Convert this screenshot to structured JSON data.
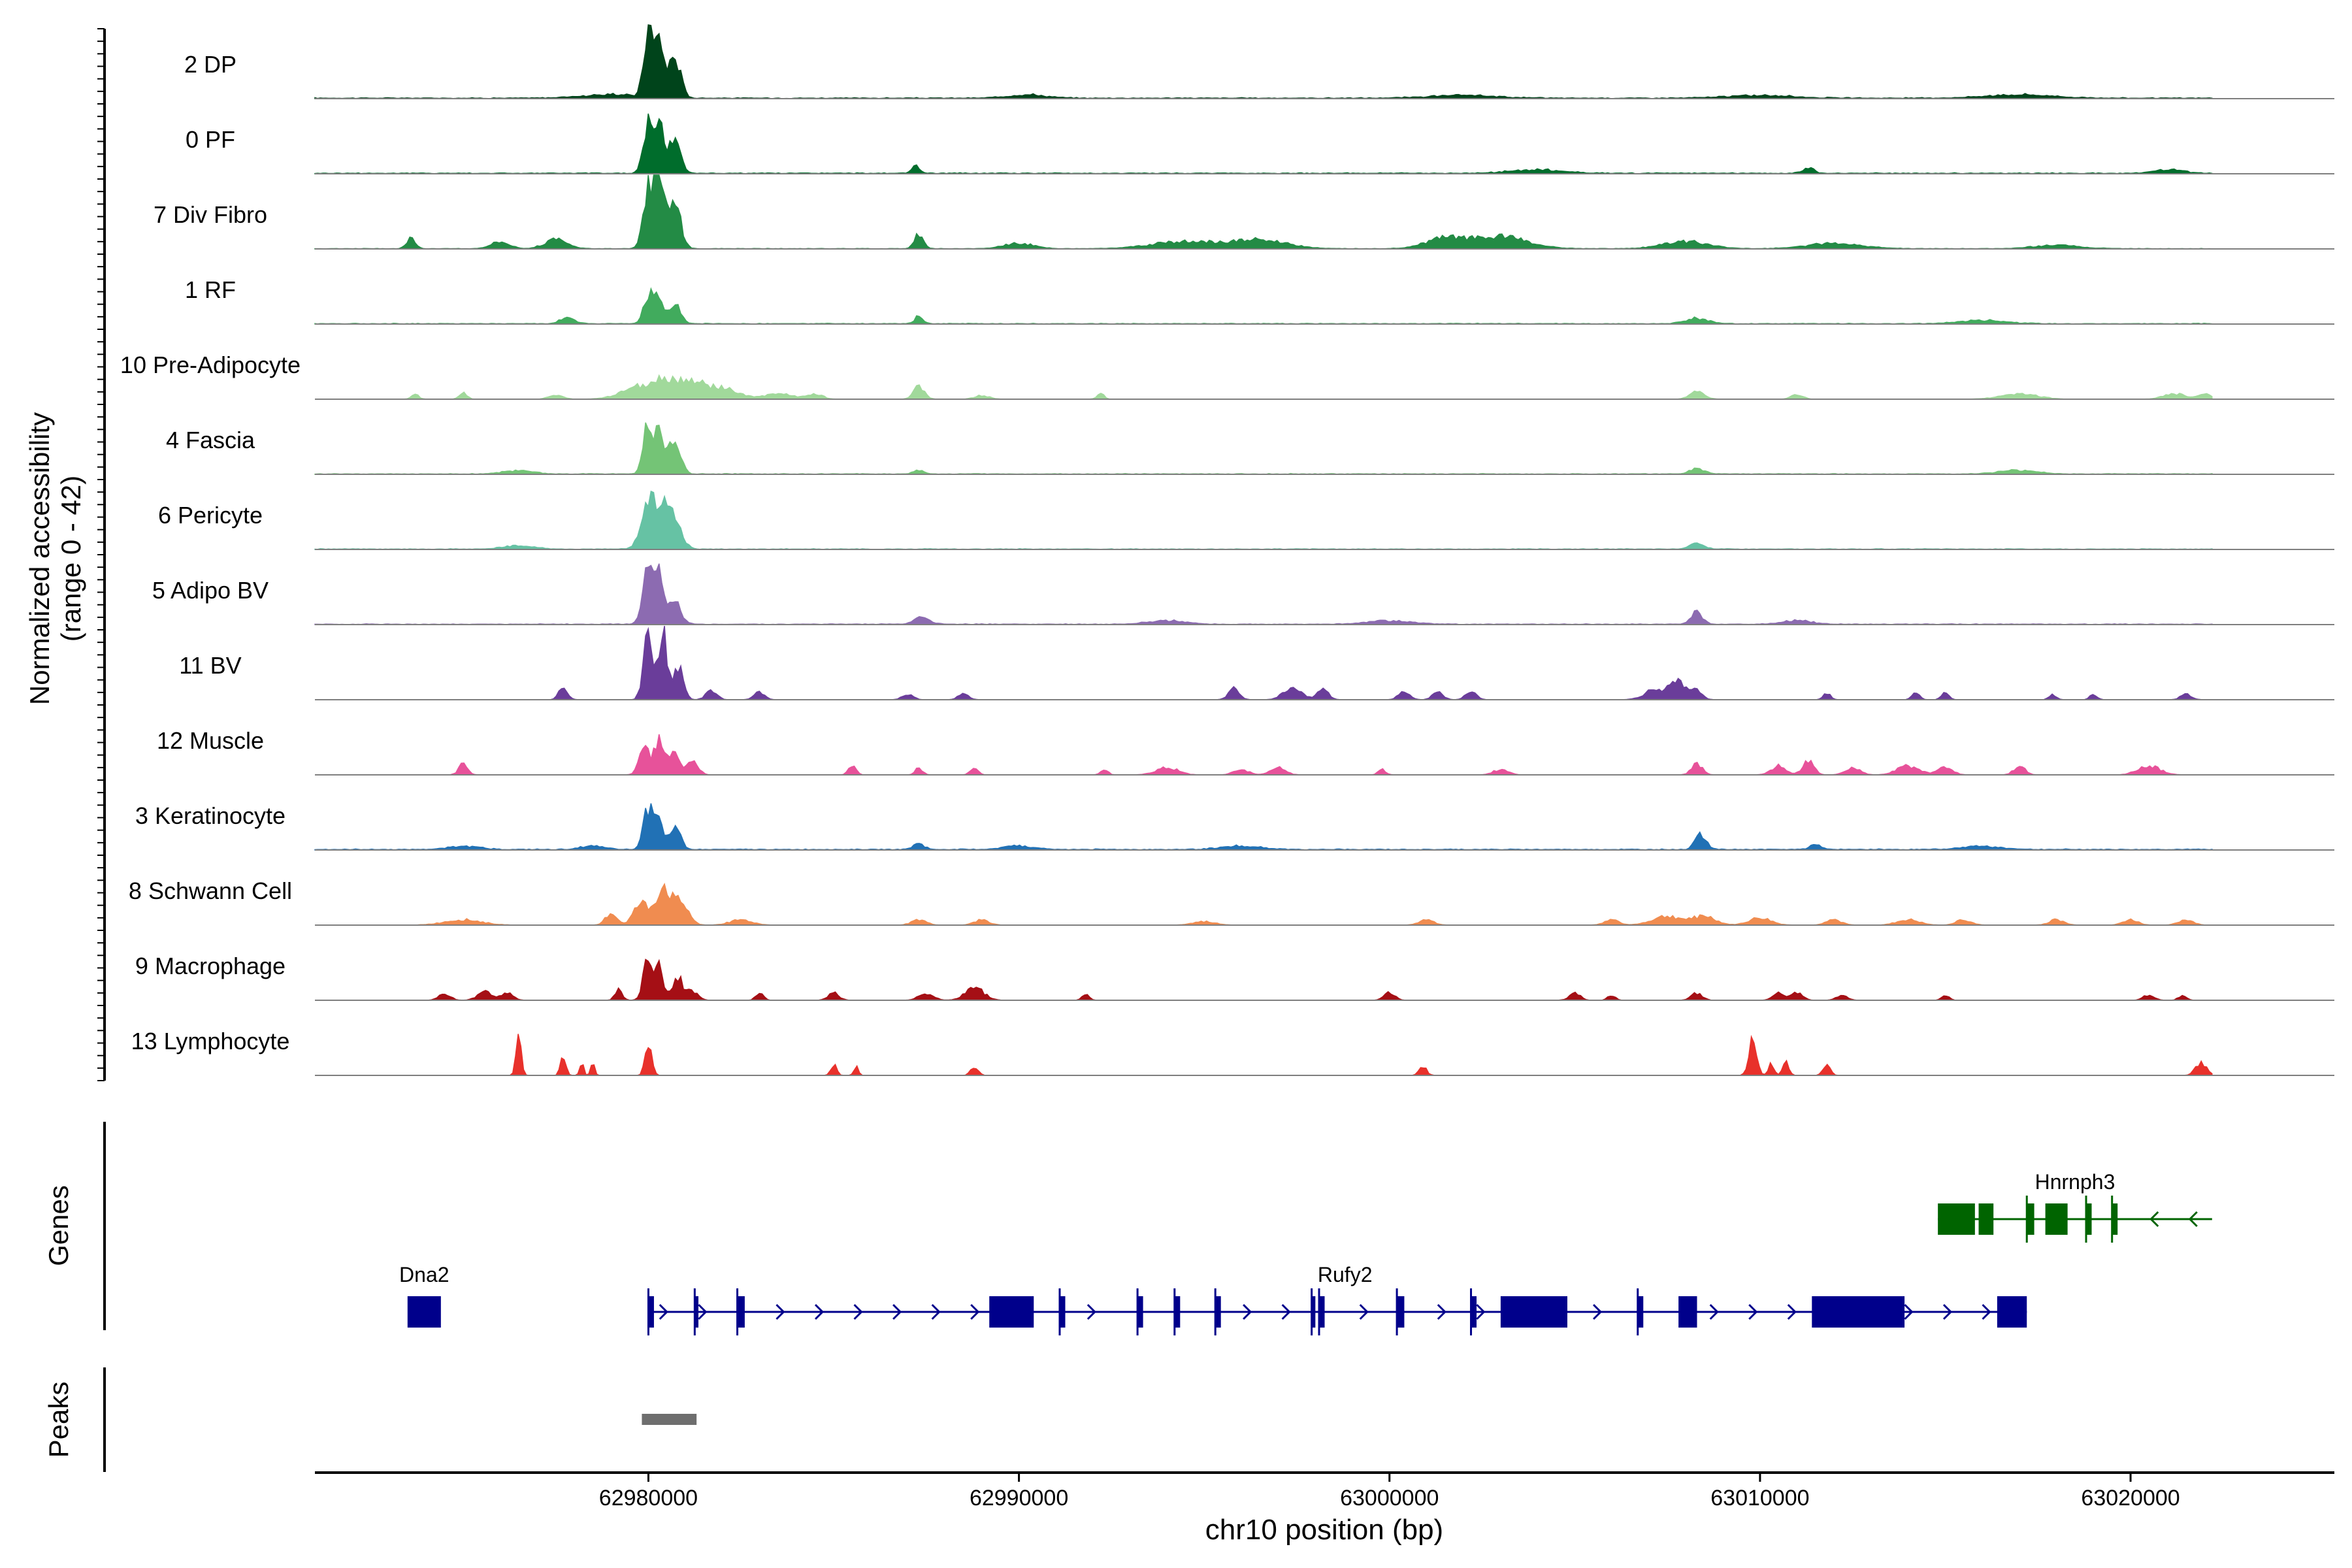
{
  "chart_data": {
    "type": "area",
    "x_axis": {
      "label": "chr10 position (bp)",
      "range": [
        62971000,
        63025500
      ],
      "ticks": [
        {
          "value": 62980000,
          "label": "62980000"
        },
        {
          "value": 62990000,
          "label": "62990000"
        },
        {
          "value": 63000000,
          "label": "63000000"
        },
        {
          "value": 63010000,
          "label": "63010000"
        },
        {
          "value": 63020000,
          "label": "63020000"
        }
      ]
    },
    "y_axis": {
      "label_line1": "Normalized accessibility",
      "label_line2": "(range 0 - 42)",
      "range": [
        0,
        42
      ]
    },
    "track_range": [
      62971000,
      63022200
    ],
    "tracks": [
      {
        "name": "2 DP",
        "color": "#00441b",
        "base": 0.4,
        "peaks": [
          [
            62980000,
            40,
            120
          ],
          [
            62980300,
            32,
            110
          ],
          [
            62980700,
            24,
            160
          ],
          [
            62979000,
            2,
            800
          ],
          [
            62990200,
            2,
            500
          ],
          [
            63002000,
            1.5,
            900
          ],
          [
            63010000,
            1.5,
            900
          ],
          [
            63017000,
            2,
            900
          ]
        ]
      },
      {
        "name": "0 PF",
        "color": "#006d2c",
        "base": 0.4,
        "peaks": [
          [
            62980000,
            30,
            130
          ],
          [
            62980300,
            34,
            110
          ],
          [
            62980700,
            22,
            160
          ],
          [
            62987200,
            4,
            100
          ],
          [
            63004000,
            2,
            700
          ],
          [
            63011300,
            3,
            150
          ],
          [
            63021000,
            2,
            400
          ]
        ]
      },
      {
        "name": "7 Div Fibro",
        "color": "#238b45",
        "base": 0.2,
        "peaks": [
          [
            62973600,
            6,
            120
          ],
          [
            62976000,
            4,
            250
          ],
          [
            62977500,
            5,
            300
          ],
          [
            62980000,
            36,
            140
          ],
          [
            62980300,
            40,
            120
          ],
          [
            62980700,
            26,
            170
          ],
          [
            62987300,
            8,
            120
          ],
          [
            62990000,
            3,
            400
          ],
          [
            62994500,
            4,
            900
          ],
          [
            62996500,
            5,
            700
          ],
          [
            63001500,
            6,
            500
          ],
          [
            63003000,
            7,
            700
          ],
          [
            63008000,
            4,
            600
          ],
          [
            63012000,
            3,
            700
          ],
          [
            63018000,
            2,
            600
          ]
        ]
      },
      {
        "name": "1 RF",
        "color": "#41ab5d",
        "base": 0.3,
        "peaks": [
          [
            62977800,
            3,
            200
          ],
          [
            62980000,
            18,
            130
          ],
          [
            62980300,
            14,
            110
          ],
          [
            62980700,
            11,
            160
          ],
          [
            62987300,
            4,
            120
          ],
          [
            63008300,
            3,
            300
          ],
          [
            63016000,
            2,
            600
          ]
        ]
      },
      {
        "name": "10 Pre-Adipocyte",
        "color": "#a1d99b",
        "base": 0.0,
        "peaks": [
          [
            62973700,
            3,
            100
          ],
          [
            62975000,
            4,
            100
          ],
          [
            62977500,
            2,
            200
          ],
          [
            62979800,
            7,
            500
          ],
          [
            62980600,
            9,
            400
          ],
          [
            62981300,
            7,
            300
          ],
          [
            62982000,
            6,
            400
          ],
          [
            62983500,
            3,
            400
          ],
          [
            62984500,
            3,
            200
          ],
          [
            62987300,
            7,
            150
          ],
          [
            62989000,
            2,
            200
          ],
          [
            62992200,
            3,
            100
          ],
          [
            63008300,
            4,
            200
          ],
          [
            63011000,
            3,
            150
          ],
          [
            63017000,
            3,
            500
          ],
          [
            63021200,
            3,
            300
          ],
          [
            63022000,
            3,
            150
          ]
        ]
      },
      {
        "name": "4 Fascia",
        "color": "#74c476",
        "base": 0.3,
        "peaks": [
          [
            62980000,
            28,
            130
          ],
          [
            62980300,
            24,
            110
          ],
          [
            62980700,
            18,
            160
          ],
          [
            62976500,
            2,
            400
          ],
          [
            62987300,
            2,
            150
          ],
          [
            63008300,
            3,
            200
          ],
          [
            63017000,
            2,
            500
          ]
        ]
      },
      {
        "name": "6 Pericyte",
        "color": "#66c2a4",
        "base": 0.3,
        "peaks": [
          [
            62980000,
            22,
            200
          ],
          [
            62980350,
            20,
            180
          ],
          [
            62980700,
            14,
            200
          ],
          [
            62976500,
            2,
            400
          ],
          [
            63008300,
            3,
            200
          ]
        ]
      },
      {
        "name": "5 Adipo BV",
        "color": "#8c6bb1",
        "base": 0.3,
        "peaks": [
          [
            62980000,
            30,
            150
          ],
          [
            62980300,
            25,
            120
          ],
          [
            62980700,
            12,
            180
          ],
          [
            62987400,
            4,
            200
          ],
          [
            62994000,
            2,
            500
          ],
          [
            63000000,
            2,
            600
          ],
          [
            63008300,
            7,
            150
          ],
          [
            63011000,
            2,
            400
          ]
        ]
      },
      {
        "name": "11 BV",
        "color": "#6a3d9a",
        "base": 0.0,
        "peaks": [
          [
            62977700,
            7,
            120
          ],
          [
            62980000,
            36,
            130
          ],
          [
            62980400,
            38,
            110
          ],
          [
            62980800,
            18,
            140
          ],
          [
            62981700,
            5,
            150
          ],
          [
            62983000,
            4,
            150
          ],
          [
            62987000,
            3,
            150
          ],
          [
            62988500,
            3,
            150
          ],
          [
            62995800,
            6,
            150
          ],
          [
            62997400,
            7,
            250
          ],
          [
            62998200,
            6,
            150
          ],
          [
            63000400,
            5,
            150
          ],
          [
            63001300,
            4,
            150
          ],
          [
            63002200,
            5,
            150
          ],
          [
            63007200,
            6,
            300
          ],
          [
            63007800,
            9,
            200
          ],
          [
            63008300,
            5,
            150
          ],
          [
            63011800,
            4,
            100
          ],
          [
            63014200,
            4,
            100
          ],
          [
            63015000,
            4,
            100
          ],
          [
            63017900,
            3,
            100
          ],
          [
            63019000,
            3,
            100
          ],
          [
            63021500,
            3,
            150
          ]
        ]
      },
      {
        "name": "12 Muscle",
        "color": "#e7529a",
        "base": 0.0,
        "peaks": [
          [
            62975000,
            6,
            120
          ],
          [
            62979900,
            14,
            150
          ],
          [
            62980300,
            18,
            130
          ],
          [
            62980700,
            12,
            150
          ],
          [
            62981200,
            7,
            150
          ],
          [
            62985500,
            5,
            100
          ],
          [
            62987300,
            4,
            100
          ],
          [
            62988800,
            5,
            100
          ],
          [
            62992300,
            3,
            100
          ],
          [
            62994000,
            4,
            300
          ],
          [
            62996000,
            3,
            200
          ],
          [
            62997000,
            4,
            200
          ],
          [
            62999800,
            3,
            100
          ],
          [
            63003000,
            3,
            200
          ],
          [
            63008300,
            6,
            150
          ],
          [
            63010500,
            5,
            200
          ],
          [
            63011300,
            8,
            150
          ],
          [
            63012500,
            4,
            200
          ],
          [
            63014000,
            5,
            300
          ],
          [
            63015000,
            4,
            200
          ],
          [
            63017000,
            5,
            150
          ],
          [
            63020500,
            5,
            300
          ]
        ]
      },
      {
        "name": "3 Keratinocyte",
        "color": "#2171b5",
        "base": 0.4,
        "peaks": [
          [
            62980000,
            24,
            130
          ],
          [
            62980300,
            16,
            110
          ],
          [
            62980700,
            12,
            160
          ],
          [
            62975000,
            2,
            400
          ],
          [
            62978500,
            2,
            300
          ],
          [
            62987300,
            3,
            150
          ],
          [
            62990000,
            2,
            400
          ],
          [
            62996000,
            2,
            500
          ],
          [
            63008400,
            8,
            150
          ],
          [
            63011500,
            3,
            150
          ],
          [
            63016000,
            2,
            500
          ]
        ]
      },
      {
        "name": "8 Schwann Cell",
        "color": "#f08c50",
        "base": 0.0,
        "peaks": [
          [
            62975000,
            3,
            500
          ],
          [
            62979000,
            7,
            150
          ],
          [
            62979800,
            12,
            200
          ],
          [
            62980400,
            22,
            200
          ],
          [
            62980900,
            12,
            200
          ],
          [
            62982500,
            3,
            300
          ],
          [
            62987300,
            3,
            200
          ],
          [
            62989000,
            3,
            200
          ],
          [
            62995000,
            2,
            300
          ],
          [
            63001000,
            3,
            200
          ],
          [
            63006000,
            3,
            200
          ],
          [
            63007500,
            5,
            400
          ],
          [
            63008500,
            5,
            300
          ],
          [
            63010000,
            4,
            300
          ],
          [
            63012000,
            3,
            200
          ],
          [
            63014000,
            3,
            300
          ],
          [
            63015500,
            3,
            200
          ],
          [
            63018000,
            3,
            200
          ],
          [
            63020000,
            3,
            200
          ],
          [
            63021500,
            3,
            200
          ]
        ]
      },
      {
        "name": "9 Macrophage",
        "color": "#a50f15",
        "base": 0.0,
        "peaks": [
          [
            62974500,
            4,
            150
          ],
          [
            62975600,
            5,
            200
          ],
          [
            62976200,
            4,
            150
          ],
          [
            62979200,
            6,
            100
          ],
          [
            62980000,
            24,
            130
          ],
          [
            62980300,
            18,
            110
          ],
          [
            62980800,
            12,
            140
          ],
          [
            62981200,
            5,
            150
          ],
          [
            62983000,
            4,
            100
          ],
          [
            62985000,
            4,
            150
          ],
          [
            62987500,
            4,
            200
          ],
          [
            62988800,
            7,
            250
          ],
          [
            62991800,
            3,
            100
          ],
          [
            63000000,
            4,
            150
          ],
          [
            63005000,
            4,
            150
          ],
          [
            63006000,
            3,
            100
          ],
          [
            63008300,
            4,
            150
          ],
          [
            63010500,
            4,
            150
          ],
          [
            63011000,
            4,
            150
          ],
          [
            63012200,
            3,
            150
          ],
          [
            63015000,
            3,
            100
          ],
          [
            63020500,
            3,
            150
          ],
          [
            63021400,
            3,
            100
          ]
        ]
      },
      {
        "name": "13 Lymphocyte",
        "color": "#e8312b",
        "base": 0.0,
        "peaks": [
          [
            62976500,
            24,
            70
          ],
          [
            62977700,
            12,
            70
          ],
          [
            62978200,
            8,
            50
          ],
          [
            62978500,
            8,
            50
          ],
          [
            62980000,
            16,
            90
          ],
          [
            62985000,
            6,
            80
          ],
          [
            62985600,
            5,
            60
          ],
          [
            62988800,
            5,
            100
          ],
          [
            63000900,
            5,
            100
          ],
          [
            63009800,
            22,
            100
          ],
          [
            63010300,
            6,
            80
          ],
          [
            63010700,
            8,
            80
          ],
          [
            63011800,
            6,
            100
          ],
          [
            63021900,
            7,
            150
          ]
        ]
      }
    ],
    "genes": {
      "label": "Genes",
      "items": [
        {
          "name": "Dna2",
          "color": "#00008b",
          "row": 2,
          "start": 62973500,
          "end": 62974400,
          "strand": "none",
          "exons": [
            [
              62973500,
              62974400
            ]
          ]
        },
        {
          "name": "Rufy2",
          "color": "#00008b",
          "row": 2,
          "start": 62980000,
          "end": 63017200,
          "strand": "+",
          "exons": [
            [
              62980000,
              62980150
            ],
            [
              62981250,
              62981350
            ],
            [
              62982400,
              62982600
            ],
            [
              62989200,
              62990400
            ],
            [
              62991100,
              62991250
            ],
            [
              62993200,
              62993350
            ],
            [
              62994200,
              62994350
            ],
            [
              62995300,
              62995450
            ],
            [
              62997900,
              62998000
            ],
            [
              62998100,
              62998250
            ],
            [
              63000200,
              63000400
            ],
            [
              63002200,
              63002350
            ],
            [
              63003000,
              63004800
            ],
            [
              63006700,
              63006850
            ],
            [
              63007800,
              63008300
            ],
            [
              63011400,
              63013900
            ],
            [
              63016400,
              63017200
            ]
          ]
        },
        {
          "name": "Hnrnph3",
          "color": "#006400",
          "row": 1,
          "start": 63014800,
          "end": 63022200,
          "strand": "-",
          "exons": [
            [
              63014800,
              63015800
            ],
            [
              63015900,
              63016300
            ],
            [
              63017200,
              63017400
            ],
            [
              63017700,
              63018300
            ],
            [
              63018800,
              63018950
            ],
            [
              63019500,
              63019650
            ]
          ]
        }
      ]
    },
    "peaks_track": {
      "label": "Peaks",
      "color": "#6e6e6e",
      "regions": [
        [
          62980000,
          62981300
        ]
      ]
    }
  }
}
